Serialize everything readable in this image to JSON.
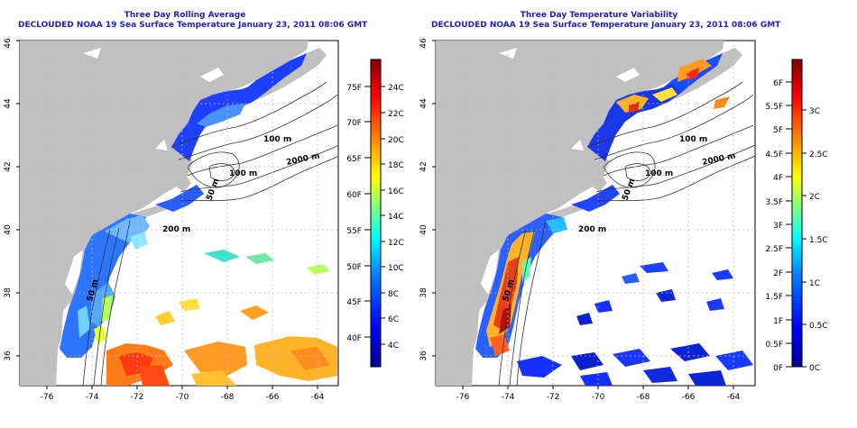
{
  "panels": [
    {
      "title": "Three Day Rolling Average",
      "subtitle": "DECLOUDED NOAA 19 Sea Surface Temperature January 23, 2011 08:06 GMT",
      "colorbar": {
        "celsius": [
          "4C",
          "6C",
          "8C",
          "10C",
          "12C",
          "14C",
          "16C",
          "18C",
          "20C",
          "22C",
          "24C"
        ],
        "fahrenheit": [
          "40F",
          "45F",
          "50F",
          "55F",
          "60F",
          "65F",
          "70F",
          "75F"
        ]
      }
    },
    {
      "title": "Three Day Temperature Variability",
      "subtitle": "DECLOUDED NOAA 19 Sea Surface Temperature January 23, 2011 08:06 GMT",
      "colorbar": {
        "celsius": [
          "0C",
          "0.5C",
          "1C",
          "1.5C",
          "2C",
          "2.5C",
          "3C"
        ],
        "fahrenheit": [
          "0F",
          "0.5F",
          "1F",
          "1.5F",
          "2F",
          "2.5F",
          "3F",
          "3.5F",
          "4F",
          "4.5F",
          "5F",
          "5.5F",
          "6F"
        ]
      }
    }
  ],
  "axes": {
    "lat_ticks": [
      "36",
      "38",
      "40",
      "42",
      "44",
      "46"
    ],
    "lon_ticks": [
      "-76",
      "-74",
      "-72",
      "-70",
      "-68",
      "-66",
      "-64"
    ]
  },
  "contours": [
    "100 m",
    "100 m",
    "50 m",
    "2000 m",
    "200 m",
    "50 m"
  ],
  "colors": {
    "title": "#1f1fbf",
    "land": "#c0c0c0",
    "ocean": "#ffffff",
    "sst_scale": [
      "#00008f",
      "#0000ff",
      "#0080ff",
      "#00ffff",
      "#80ff80",
      "#ffff00",
      "#ff8000",
      "#ff0000",
      "#800000"
    ]
  }
}
